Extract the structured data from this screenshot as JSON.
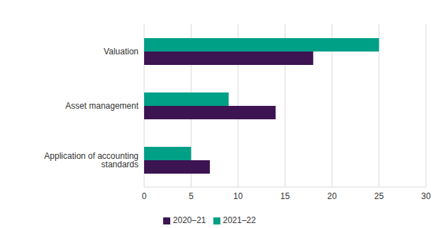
{
  "chart_data": {
    "type": "bar",
    "orientation": "horizontal",
    "categories": [
      "Valuation",
      "Asset management",
      "Application of accounting standards"
    ],
    "series": [
      {
        "name": "2021–22",
        "color": "#00a087",
        "values": [
          25,
          9,
          5
        ]
      },
      {
        "name": "2020–21",
        "color": "#3c1452",
        "values": [
          18,
          14,
          7
        ]
      }
    ],
    "xlim": [
      0,
      30
    ],
    "xticks": [
      0,
      5,
      10,
      15,
      20,
      25,
      30
    ],
    "grid": true,
    "legend": "bottom"
  }
}
